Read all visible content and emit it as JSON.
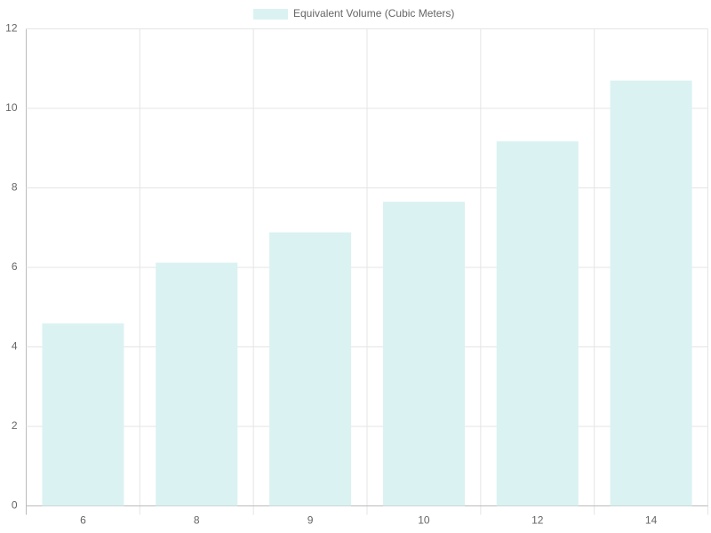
{
  "chart_data": {
    "type": "bar",
    "categories": [
      "6",
      "8",
      "9",
      "10",
      "12",
      "14"
    ],
    "series": [
      {
        "name": "Equivalent Volume (Cubic Meters)",
        "color": "#dbf2f2",
        "values": [
          4.59,
          6.12,
          6.88,
          7.65,
          9.17,
          10.7
        ]
      }
    ],
    "ylim": [
      0,
      12
    ],
    "yticks": [
      0,
      2,
      4,
      6,
      8,
      10,
      12
    ],
    "grid": true,
    "legend": "top"
  }
}
